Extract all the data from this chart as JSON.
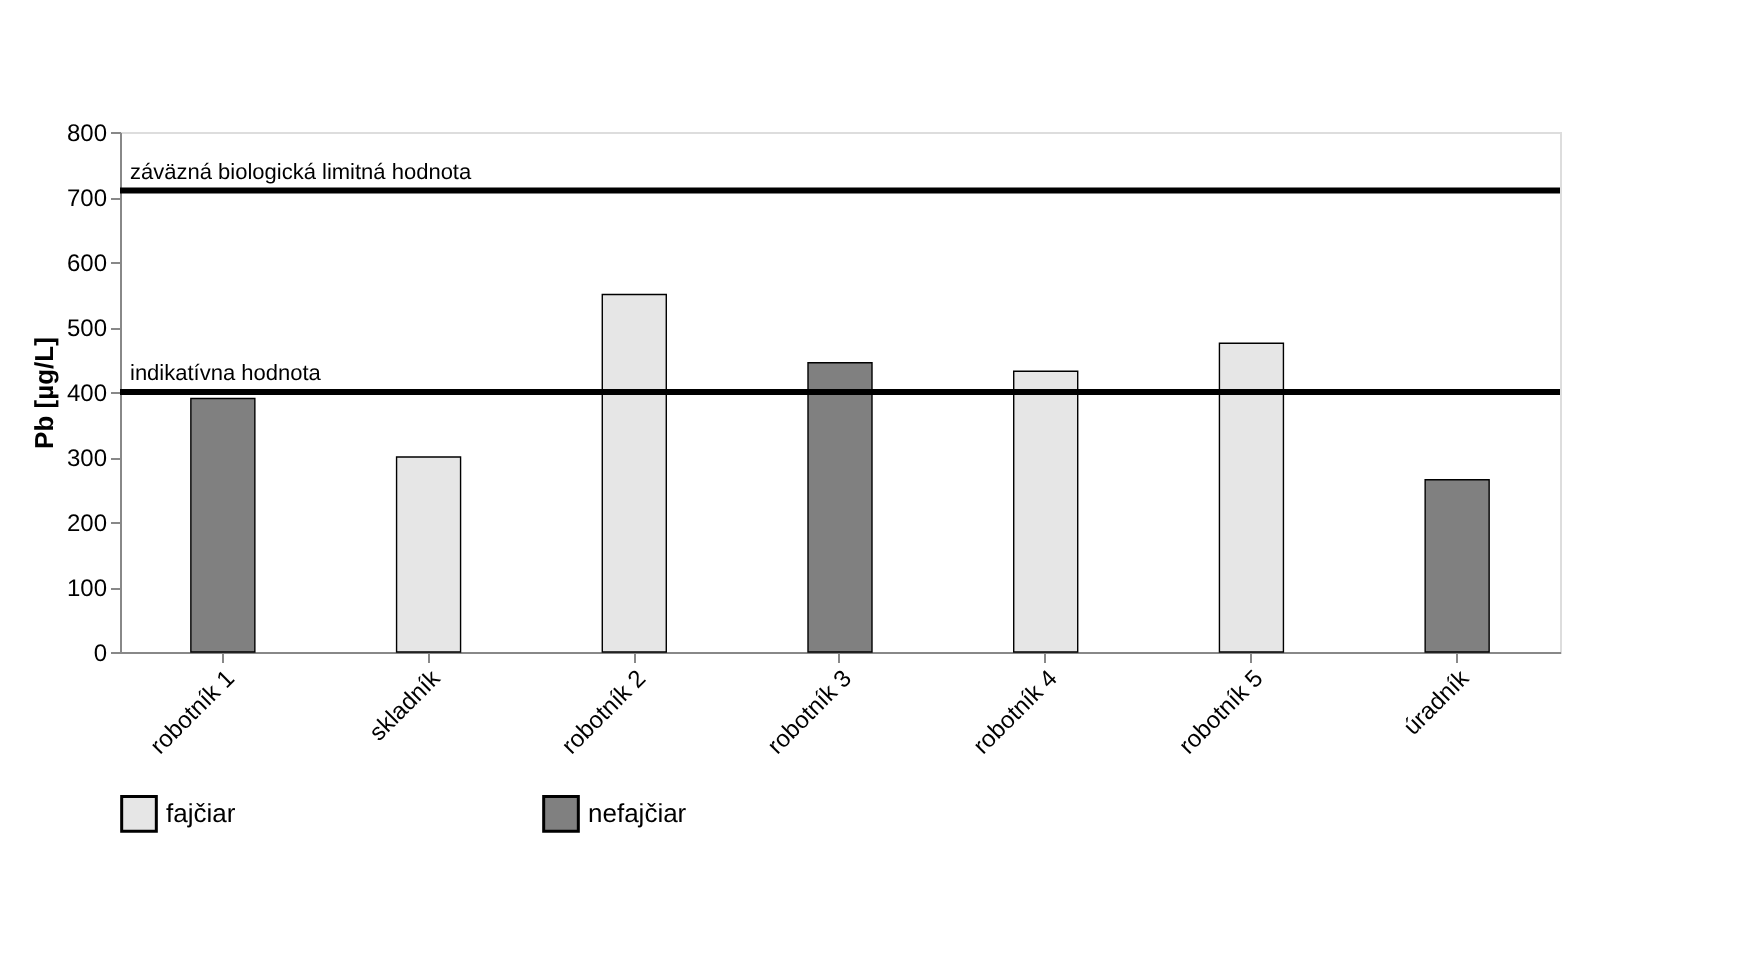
{
  "chart_data": {
    "type": "bar",
    "ylabel": "Pb [µg/L]",
    "categories": [
      "robotník 1",
      "skladník",
      "robotník 2",
      "robotník 3",
      "robotník 4",
      "robotník 5",
      "úradník"
    ],
    "series": [
      {
        "name": "fajčiar",
        "color": "#e6e6e6",
        "values": [
          null,
          300,
          550,
          null,
          432,
          475,
          null
        ]
      },
      {
        "name": "nefajčiar",
        "color": "#808080",
        "values": [
          390,
          null,
          null,
          445,
          null,
          null,
          265
        ]
      }
    ],
    "ylim": [
      0,
      800
    ],
    "yticks": [
      0,
      100,
      200,
      300,
      400,
      500,
      600,
      700,
      800
    ],
    "grid": false,
    "legend": "bottom",
    "ref_lines": [
      {
        "axis": "y",
        "value": 710,
        "label": "záväzná biologická limitná hodnota",
        "color": "#000000"
      },
      {
        "axis": "y",
        "value": 400,
        "label": "indikatívna hodnota",
        "color": "#000000"
      }
    ]
  }
}
